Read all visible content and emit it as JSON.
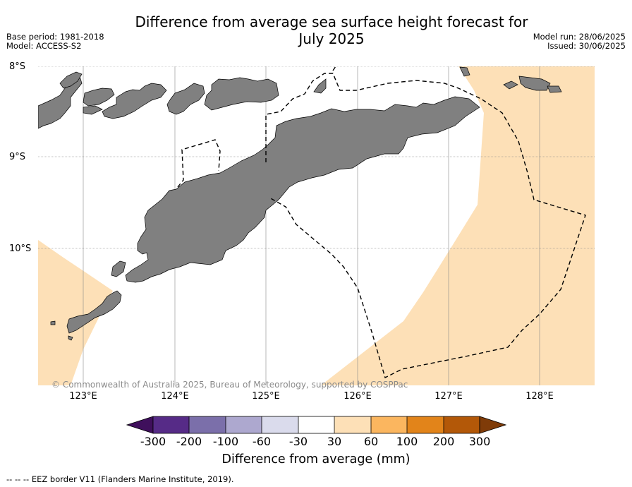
{
  "title_line1": "Difference from average sea surface height forecast for",
  "title_line2": "July 2025",
  "meta_left": [
    "Base period: 1981-2018",
    "Model: ACCESS-S2"
  ],
  "meta_right": [
    "Model run: 28/06/2025",
    "Issued: 30/06/2025"
  ],
  "copyright": "© Commonwealth of Australia 2025, Bureau of Meteorology, supported by COSPPac",
  "map": {
    "lat_labels": [
      "8°S",
      "9°S",
      "10°S"
    ],
    "lon_labels": [
      "123°E",
      "124°E",
      "125°E",
      "126°E",
      "127°E",
      "128°E"
    ],
    "colors": {
      "land": "#808080",
      "anomaly_30_60": "#fde0b7",
      "sea_neutral": "#ffffff",
      "grid": "#888888"
    }
  },
  "colorbar": {
    "tick_labels": [
      "-300",
      "-200",
      "-100",
      "-60",
      "-30",
      "30",
      "60",
      "100",
      "200",
      "300"
    ],
    "colors": [
      "#3f0f5c",
      "#562b87",
      "#7b6faa",
      "#ada8cf",
      "#dadbec",
      "#ffffff",
      "#fde0b7",
      "#fbb65f",
      "#e2841a",
      "#b35808",
      "#7f3b08"
    ],
    "label": "Difference from average (mm)"
  },
  "footer": "--  --  -- EEZ border V11 (Flanders Marine Institute, 2019)."
}
